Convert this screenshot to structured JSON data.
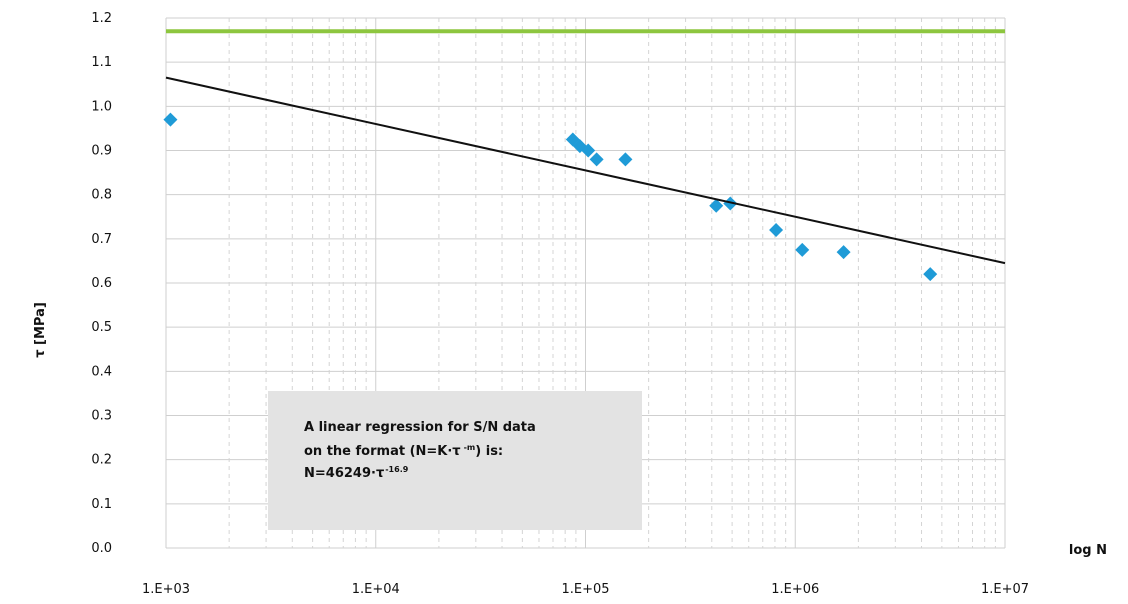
{
  "chart_data": {
    "type": "scatter",
    "xlabel": "log N",
    "ylabel": "τ [MPa]",
    "x_scale": "log",
    "xlim": [
      1000,
      10000000
    ],
    "ylim": [
      0.0,
      1.2
    ],
    "x_ticks": [
      "1.E+03",
      "1.E+04",
      "1.E+05",
      "1.E+06",
      "1.E+07"
    ],
    "y_ticks": [
      "0.0",
      "0.1",
      "0.2",
      "0.3",
      "0.4",
      "0.5",
      "0.6",
      "0.7",
      "0.8",
      "0.9",
      "1.0",
      "1.1",
      "1.2"
    ],
    "grid": true,
    "series": [
      {
        "kind": "scatter",
        "marker": "diamond",
        "color": "#1f9bd7",
        "points": [
          {
            "x": 1050,
            "y": 0.97
          },
          {
            "x": 87000,
            "y": 0.925
          },
          {
            "x": 94000,
            "y": 0.91
          },
          {
            "x": 103000,
            "y": 0.9
          },
          {
            "x": 113000,
            "y": 0.88
          },
          {
            "x": 155000,
            "y": 0.88
          },
          {
            "x": 420000,
            "y": 0.775
          },
          {
            "x": 490000,
            "y": 0.78
          },
          {
            "x": 810000,
            "y": 0.72
          },
          {
            "x": 1080000,
            "y": 0.675
          },
          {
            "x": 1700000,
            "y": 0.67
          },
          {
            "x": 4400000,
            "y": 0.62
          }
        ]
      },
      {
        "kind": "line",
        "color": "#111111",
        "points": [
          {
            "x": 1000,
            "y": 1.065
          },
          {
            "x": 10000000,
            "y": 0.645
          }
        ]
      },
      {
        "kind": "hline",
        "color": "#8dc63f",
        "y": 1.17
      }
    ],
    "annotation": {
      "line1": "A linear regression for S/N data",
      "line2a": "on the format (N=K·τ",
      "line2sup": "-m",
      "line2b": ") is:",
      "line3a": "N=46249·τ",
      "line3sup": "-16.9"
    }
  }
}
